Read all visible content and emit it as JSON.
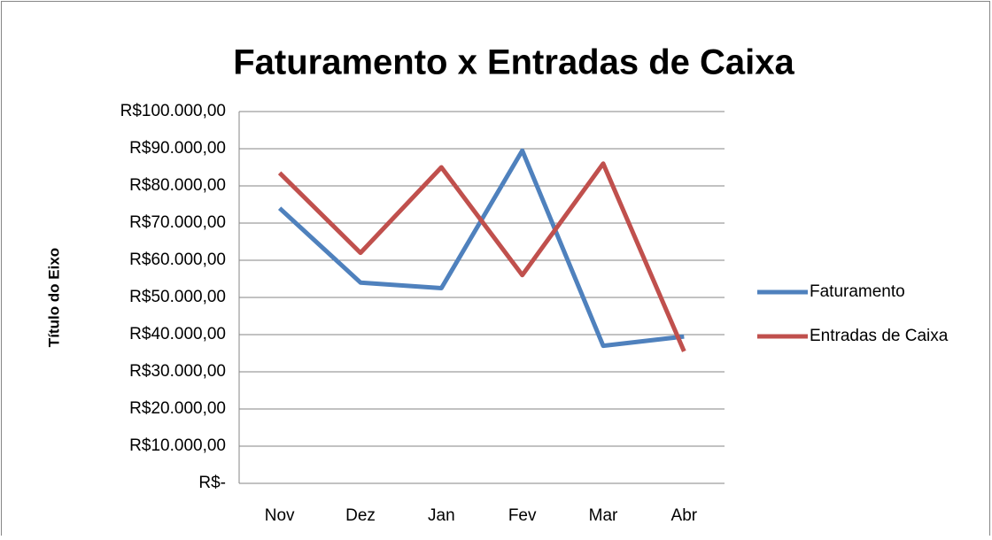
{
  "chart_data": {
    "type": "line",
    "title": "Faturamento x Entradas de Caixa",
    "y_axis_label": "Título do Eixo",
    "categories": [
      "Nov",
      "Dez",
      "Jan",
      "Fev",
      "Mar",
      "Abr"
    ],
    "series": [
      {
        "name": "Faturamento",
        "color": "#4f81bd",
        "values": [
          74000,
          54000,
          52500,
          89500,
          37000,
          39500
        ]
      },
      {
        "name": "Entradas de Caixa",
        "color": "#c0504d",
        "values": [
          83500,
          62000,
          85000,
          56000,
          86000,
          35500
        ]
      }
    ],
    "ylim": [
      0,
      100000
    ],
    "yticks": [
      {
        "value": 0,
        "label": "R$-"
      },
      {
        "value": 10000,
        "label": "R$10.000,00"
      },
      {
        "value": 20000,
        "label": "R$20.000,00"
      },
      {
        "value": 30000,
        "label": "R$30.000,00"
      },
      {
        "value": 40000,
        "label": "R$40.000,00"
      },
      {
        "value": 50000,
        "label": "R$50.000,00"
      },
      {
        "value": 60000,
        "label": "R$60.000,00"
      },
      {
        "value": 70000,
        "label": "R$70.000,00"
      },
      {
        "value": 80000,
        "label": "R$80.000,00"
      },
      {
        "value": 90000,
        "label": "R$90.000,00"
      },
      {
        "value": 100000,
        "label": "R$100.000,00"
      }
    ],
    "grid": true,
    "legend": "right"
  }
}
